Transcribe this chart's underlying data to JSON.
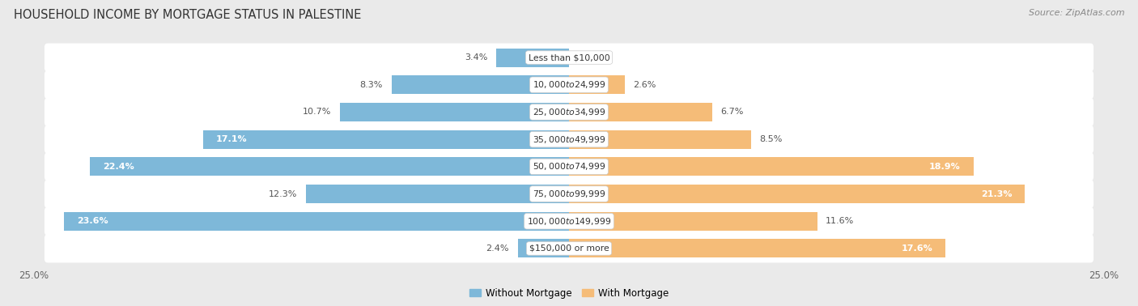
{
  "title": "HOUSEHOLD INCOME BY MORTGAGE STATUS IN PALESTINE",
  "source": "Source: ZipAtlas.com",
  "categories": [
    "Less than $10,000",
    "$10,000 to $24,999",
    "$25,000 to $34,999",
    "$35,000 to $49,999",
    "$50,000 to $74,999",
    "$75,000 to $99,999",
    "$100,000 to $149,999",
    "$150,000 or more"
  ],
  "without_mortgage": [
    3.4,
    8.3,
    10.7,
    17.1,
    22.4,
    12.3,
    23.6,
    2.4
  ],
  "with_mortgage": [
    0.0,
    2.6,
    6.7,
    8.5,
    18.9,
    21.3,
    11.6,
    17.6
  ],
  "without_mortgage_color": "#7EB8D9",
  "with_mortgage_color": "#F5BC78",
  "row_bg_color": "#EBEBEB",
  "row_bg_alt_color": "#F5F5F5",
  "fig_bg_color": "#EAEAEA",
  "xlim": 25.0,
  "legend_labels": [
    "Without Mortgage",
    "With Mortgage"
  ],
  "title_fontsize": 10.5,
  "source_fontsize": 8,
  "axis_label_fontsize": 8.5,
  "bar_label_fontsize": 8,
  "category_fontsize": 7.8,
  "bar_height": 0.68,
  "inside_label_threshold": 14.0
}
